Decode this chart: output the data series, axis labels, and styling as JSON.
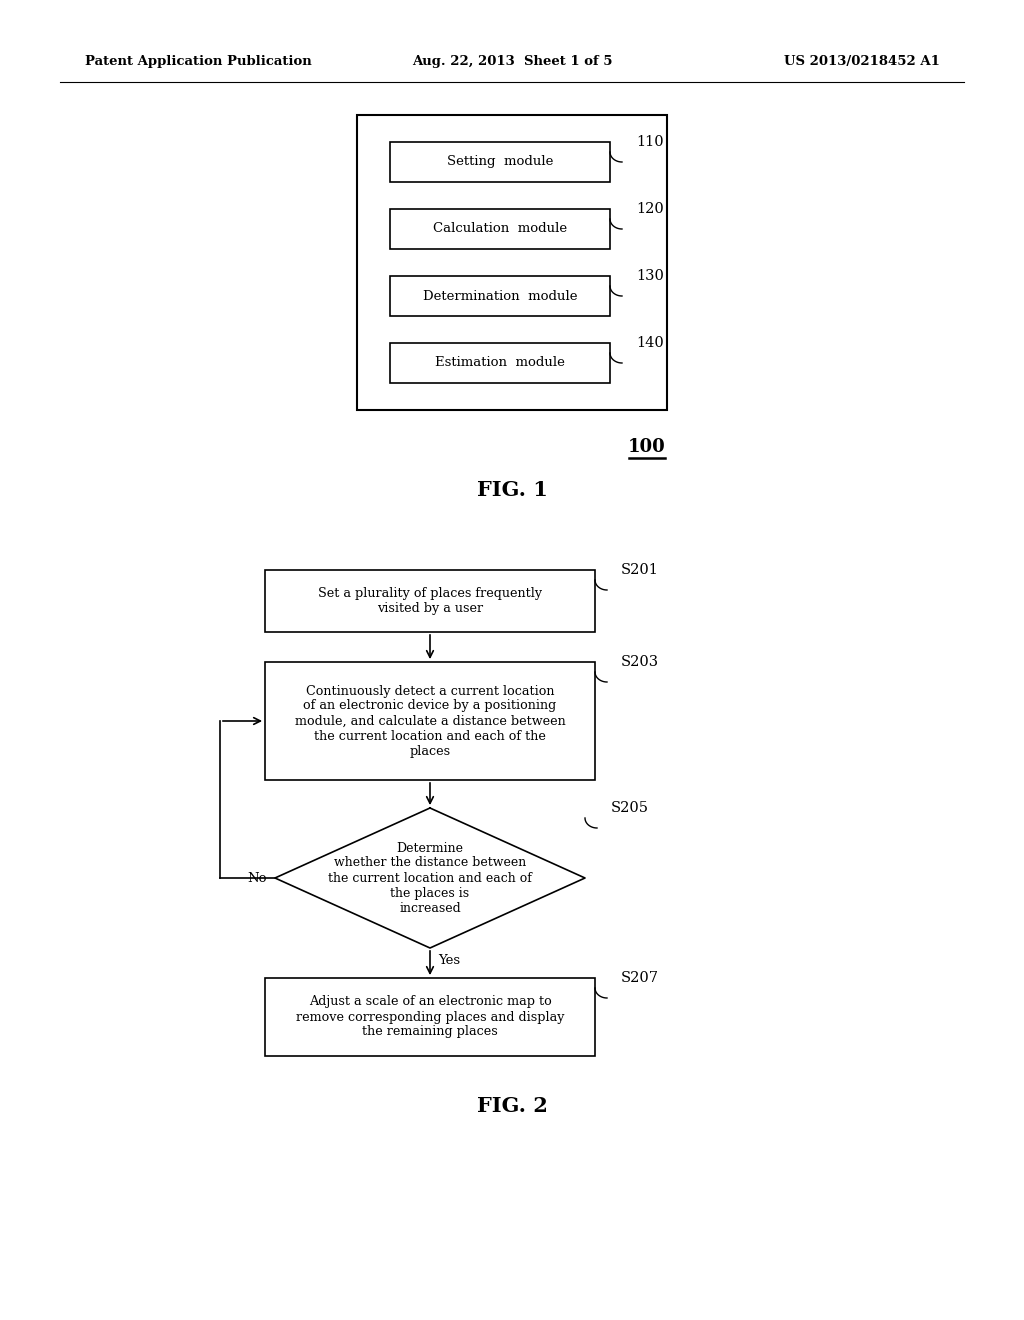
{
  "background_color": "#ffffff",
  "header_left": "Patent Application Publication",
  "header_center": "Aug. 22, 2013  Sheet 1 of 5",
  "header_right": "US 2013/0218452 A1",
  "fig1_label": "FIG. 1",
  "fig2_label": "FIG. 2",
  "fig1_ref": "100",
  "fig1_modules": [
    {
      "label": "110",
      "text": "Setting  module"
    },
    {
      "label": "120",
      "text": "Calculation  module"
    },
    {
      "label": "130",
      "text": "Determination  module"
    },
    {
      "label": "140",
      "text": "Estimation  module"
    }
  ],
  "s201_text": "Set a plurality of places frequently\nvisited by a user",
  "s201_label": "S201",
  "s203_text": "Continuously detect a current location\nof an electronic device by a positioning\nmodule, and calculate a distance between\nthe current location and each of the\nplaces",
  "s203_label": "S203",
  "s205_text": "Determine\nwhether the distance between\nthe current location and each of\nthe places is\nincreased",
  "s205_label": "S205",
  "s207_text": "Adjust a scale of an electronic map to\nremove corresponding places and display\nthe remaining places",
  "s207_label": "S207",
  "font_size_header": 9.5,
  "font_size_box_text": 9.2,
  "font_size_label_num": 10.5,
  "font_size_fig": 15,
  "font_size_ref": 13,
  "font_size_module": 9.5
}
